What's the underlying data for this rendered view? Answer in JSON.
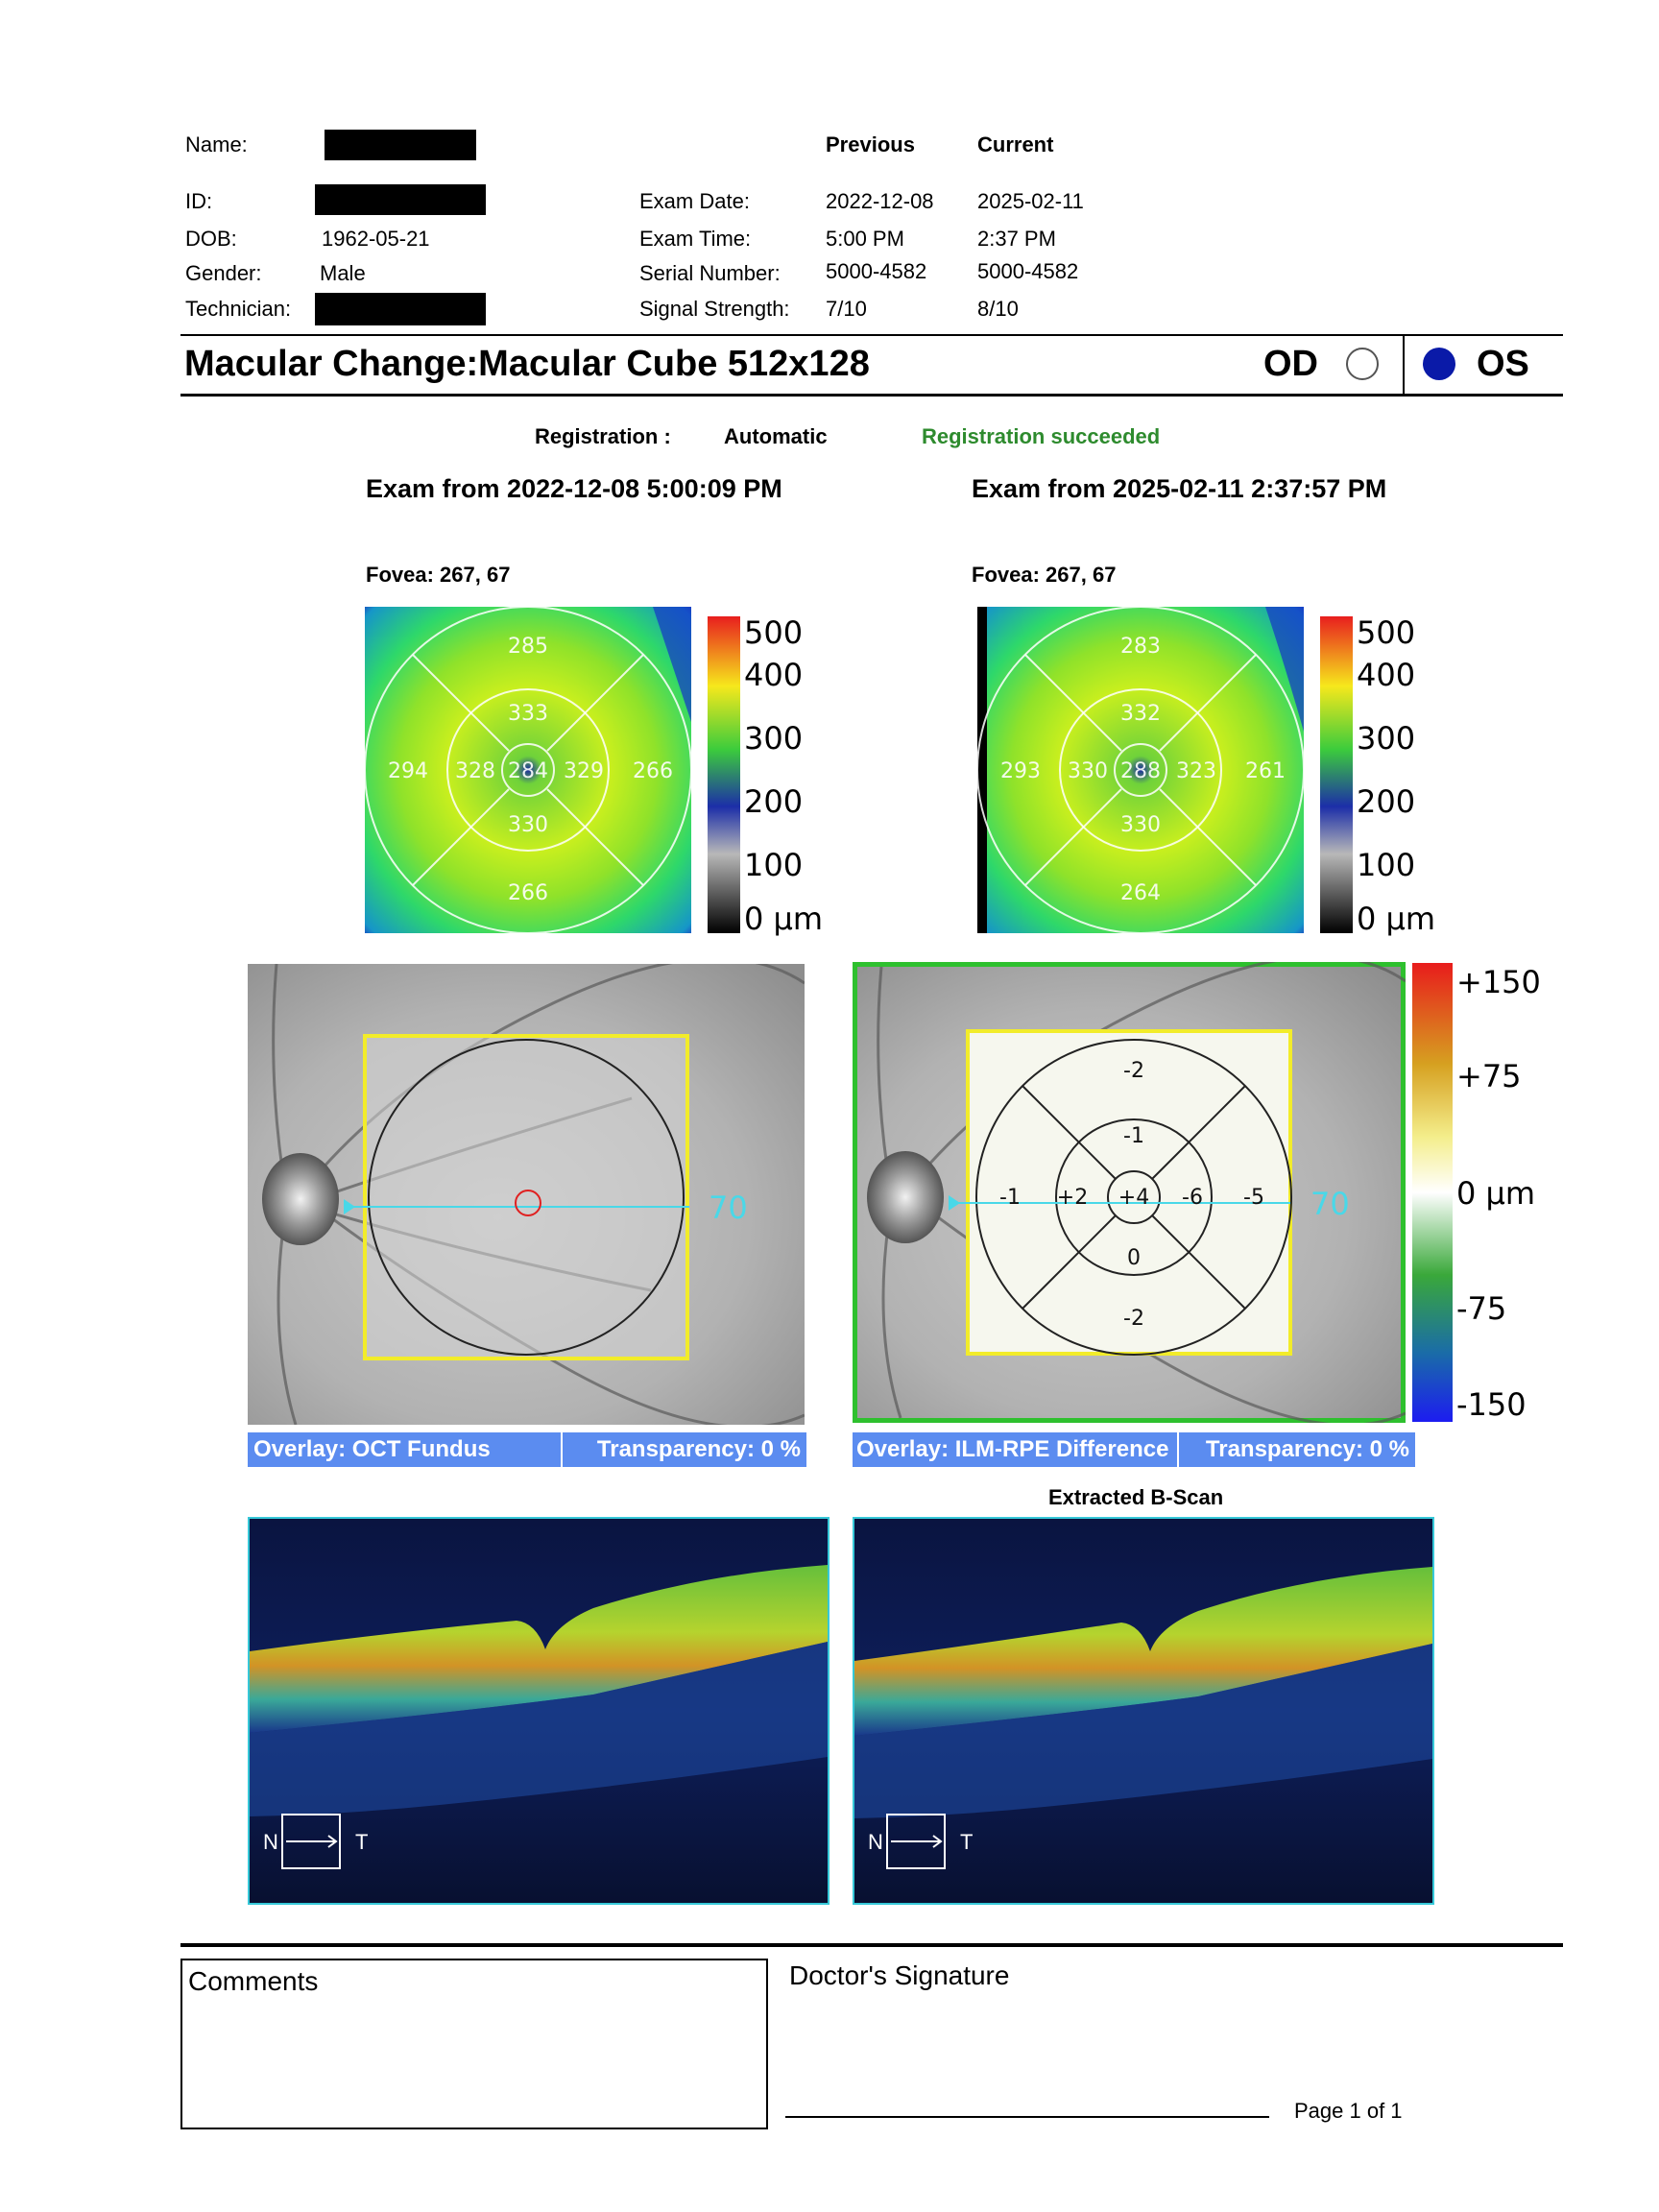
{
  "header": {
    "name_label": "Name:",
    "id_label": "ID:",
    "dob_label": "DOB:",
    "dob_value": "1962-05-21",
    "gender_label": "Gender:",
    "gender_value": "Male",
    "technician_label": "Technician:",
    "previous_label": "Previous",
    "current_label": "Current",
    "exam_date_label": "Exam Date:",
    "exam_time_label": "Exam Time:",
    "serial_label": "Serial Number:",
    "signal_label": "Signal Strength:",
    "previous": {
      "date": "2022-12-08",
      "time": "5:00 PM",
      "serial": "5000-4582",
      "signal": "7/10"
    },
    "current": {
      "date": "2025-02-11",
      "time": "2:37 PM",
      "serial": "5000-4582",
      "signal": "8/10"
    }
  },
  "title": {
    "text": "Macular Change:Macular Cube 512x128",
    "od_label": "OD",
    "os_label": "OS",
    "selected_eye": "OS"
  },
  "registration": {
    "label": "Registration :",
    "mode": "Automatic",
    "status": "Registration succeeded",
    "status_color": "#2e8b2e"
  },
  "exams": {
    "previous_heading": "Exam from 2022-12-08 5:00:09 PM",
    "current_heading": "Exam from 2025-02-11 2:37:57 PM",
    "previous_fovea": "Fovea: 267, 67",
    "current_fovea": "Fovea: 267, 67"
  },
  "thickness_maps": {
    "previous": {
      "outer_top": "285",
      "inner_top": "333",
      "outer_left": "294",
      "inner_left": "328",
      "center": "284",
      "inner_right": "329",
      "outer_right": "266",
      "inner_bottom": "330",
      "outer_bottom": "266"
    },
    "current": {
      "outer_top": "283",
      "inner_top": "332",
      "outer_left": "293",
      "inner_left": "330",
      "center": "288",
      "inner_right": "323",
      "outer_right": "261",
      "inner_bottom": "330",
      "outer_bottom": "264"
    },
    "scale_labels": [
      "500",
      "400",
      "300",
      "200",
      "100",
      "0 µm"
    ]
  },
  "fundus": {
    "scan_line_label": "70",
    "previous_overlay_label": "Overlay: OCT Fundus",
    "previous_transparency": "Transparency: 0 %",
    "current_overlay_label": "Overlay: ILM-RPE Difference",
    "current_transparency": "Transparency: 0 %",
    "difference_grid": {
      "outer_top": "-2",
      "inner_top": "-1",
      "outer_left": "-1",
      "inner_left": "+2",
      "center": "+4",
      "inner_right": "-6",
      "outer_right": "-5",
      "inner_bottom": "0",
      "outer_bottom": "-2"
    },
    "difference_scale_labels": [
      "+150",
      "+75",
      "0 µm",
      "-75",
      "-150"
    ]
  },
  "bscan": {
    "heading": "Extracted B-Scan",
    "nasal": "N",
    "temporal": "T"
  },
  "footer": {
    "comments_label": "Comments",
    "signature_label": "Doctor's Signature",
    "page_label": "Page 1 of 1"
  }
}
